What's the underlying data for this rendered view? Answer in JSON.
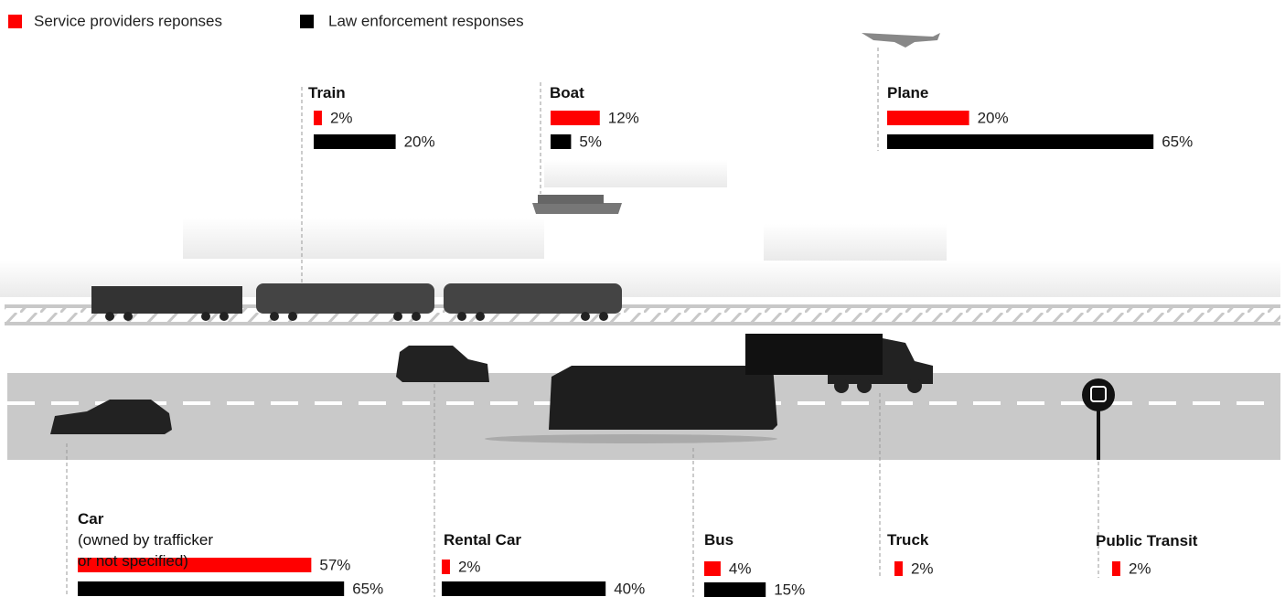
{
  "chart_data": {
    "type": "bar",
    "categories": [
      "Train",
      "Boat",
      "Plane",
      "Car\n(owned by trafficker\nor not specified)",
      "Rental Car",
      "Bus",
      "Truck",
      "Public Transit"
    ],
    "series": [
      {
        "name": "Service providers reponses",
        "color": "#ff0000",
        "values": [
          2,
          12,
          20,
          57,
          2,
          4,
          2,
          2
        ],
        "value_labels": [
          "2%",
          "12%",
          "20%",
          "57%",
          "2%",
          "4%",
          "2%",
          "2%"
        ]
      },
      {
        "name": "Law enforcement responses",
        "color": "#000000",
        "values": [
          20,
          5,
          65,
          65,
          40,
          15,
          null,
          null
        ],
        "value_labels": [
          "20%",
          "5%",
          "65%",
          "65%",
          "40%",
          "15%",
          null,
          null
        ]
      }
    ]
  }
}
